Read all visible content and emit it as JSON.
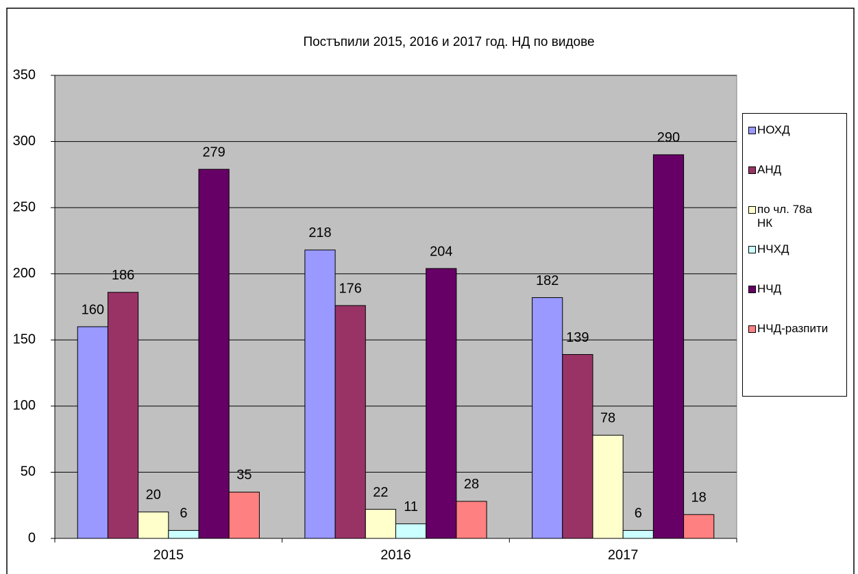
{
  "chart_data": {
    "type": "bar",
    "title": "Постъпили 2015, 2016 и 2017 год. НД по видове",
    "categories": [
      "2015",
      "2016",
      "2017"
    ],
    "series": [
      {
        "name": "НОХД",
        "color": "#9999ff",
        "values": [
          160,
          218,
          182
        ]
      },
      {
        "name": "АНД",
        "color": "#993366",
        "values": [
          186,
          176,
          139
        ]
      },
      {
        "name": "по чл. 78а НК",
        "color": "#ffffcc",
        "values": [
          20,
          22,
          78
        ]
      },
      {
        "name": "НЧХД",
        "color": "#ccffff",
        "values": [
          6,
          11,
          6
        ]
      },
      {
        "name": "НЧД",
        "color": "#660066",
        "values": [
          279,
          204,
          290
        ]
      },
      {
        "name": "НЧД-разпити",
        "color": "#ff8080",
        "values": [
          35,
          28,
          18
        ]
      }
    ],
    "ylim": [
      0,
      350
    ],
    "yticks": [
      0,
      50,
      100,
      150,
      200,
      250,
      300,
      350
    ],
    "grid": true,
    "legend": "right"
  }
}
